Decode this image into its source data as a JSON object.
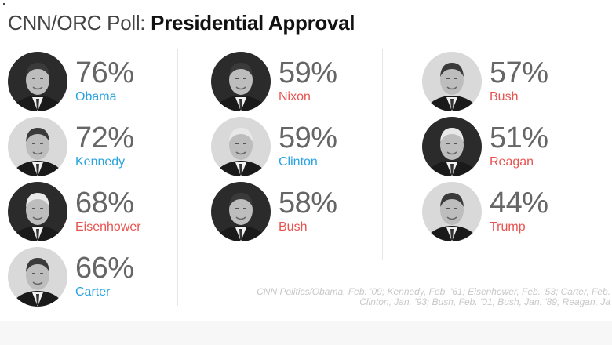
{
  "header": {
    "title_prefix": "CNN/ORC Poll:",
    "title_main": "Presidential Approval"
  },
  "chart_data": {
    "type": "table",
    "title": "CNN/ORC Poll: Presidential Approval",
    "unit": "%",
    "party_colors": {
      "D": "#2aa3e0",
      "R": "#e8534f"
    },
    "categories": [
      "Obama",
      "Kennedy",
      "Eisenhower",
      "Carter",
      "Nixon",
      "Clinton",
      "Bush",
      "Bush",
      "Reagan",
      "Trump"
    ],
    "values": [
      76,
      72,
      68,
      66,
      59,
      59,
      58,
      57,
      51,
      44
    ],
    "entries": [
      {
        "name": "Obama",
        "pct": "76%",
        "value": 76,
        "party": "D"
      },
      {
        "name": "Kennedy",
        "pct": "72%",
        "value": 72,
        "party": "D"
      },
      {
        "name": "Eisenhower",
        "pct": "68%",
        "value": 68,
        "party": "R"
      },
      {
        "name": "Carter",
        "pct": "66%",
        "value": 66,
        "party": "D"
      },
      {
        "name": "Nixon",
        "pct": "59%",
        "value": 59,
        "party": "R"
      },
      {
        "name": "Clinton",
        "pct": "59%",
        "value": 59,
        "party": "D"
      },
      {
        "name": "Bush",
        "pct": "58%",
        "value": 58,
        "party": "R"
      },
      {
        "name": "Bush",
        "pct": "57%",
        "value": 57,
        "party": "R"
      },
      {
        "name": "Reagan",
        "pct": "51%",
        "value": 51,
        "party": "R"
      },
      {
        "name": "Trump",
        "pct": "44%",
        "value": 44,
        "party": "R"
      }
    ]
  },
  "source": {
    "line1": "CNN Politics/Obama, Feb. '09; Kennedy, Feb. '61; Eisenhower, Feb. '53; Carter, Feb.",
    "line2": "Clinton, Jan. '93; Bush, Feb. '01; Bush, Jan. '89; Reagan, Ja"
  }
}
